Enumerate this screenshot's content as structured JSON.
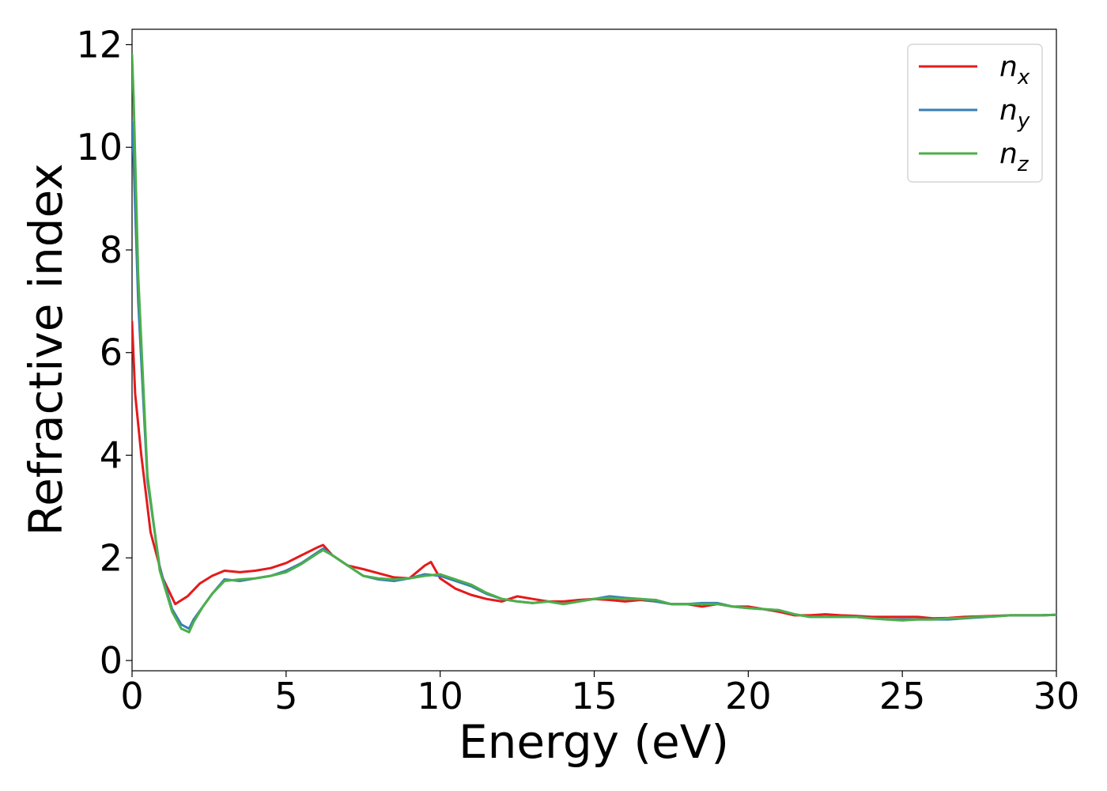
{
  "chart_data": {
    "type": "line",
    "xlabel": "Energy (eV)",
    "ylabel": "Refractive index",
    "xlim": [
      0,
      30
    ],
    "ylim": [
      -0.2,
      12.3
    ],
    "xticks": [
      0,
      5,
      10,
      15,
      20,
      25,
      30
    ],
    "yticks": [
      0,
      2,
      4,
      6,
      8,
      10,
      12
    ],
    "grid": false,
    "legend_position": "top-right",
    "series": [
      {
        "name": "n",
        "subscript": "x",
        "color": "#e41a1c",
        "x": [
          0,
          0.1,
          0.3,
          0.6,
          1.0,
          1.4,
          1.8,
          2.2,
          2.6,
          3.0,
          3.5,
          4.0,
          4.5,
          5.0,
          5.5,
          6.0,
          6.2,
          6.5,
          7.0,
          7.5,
          8.0,
          8.5,
          9.0,
          9.5,
          9.7,
          10.0,
          10.5,
          11.0,
          11.5,
          12.0,
          12.5,
          13.0,
          13.5,
          14.0,
          14.5,
          15.0,
          15.5,
          16.0,
          16.5,
          17.0,
          17.5,
          18.0,
          18.5,
          19.0,
          19.5,
          20.0,
          20.5,
          21.0,
          21.5,
          22.0,
          22.5,
          23.0,
          23.5,
          24.0,
          24.5,
          25.0,
          25.5,
          26.0,
          26.5,
          27.0,
          27.5,
          28.0,
          28.5,
          29.0,
          29.5,
          30.0
        ],
        "y": [
          6.6,
          5.2,
          4.0,
          2.5,
          1.6,
          1.1,
          1.25,
          1.5,
          1.65,
          1.75,
          1.72,
          1.75,
          1.8,
          1.9,
          2.05,
          2.2,
          2.25,
          2.05,
          1.85,
          1.78,
          1.7,
          1.62,
          1.6,
          1.85,
          1.92,
          1.6,
          1.4,
          1.28,
          1.2,
          1.15,
          1.25,
          1.2,
          1.15,
          1.15,
          1.18,
          1.2,
          1.18,
          1.15,
          1.18,
          1.15,
          1.1,
          1.1,
          1.05,
          1.1,
          1.05,
          1.05,
          1.0,
          0.95,
          0.88,
          0.88,
          0.9,
          0.88,
          0.87,
          0.85,
          0.85,
          0.85,
          0.85,
          0.82,
          0.83,
          0.85,
          0.86,
          0.87,
          0.88,
          0.88,
          0.88,
          0.89
        ]
      },
      {
        "name": "n",
        "subscript": "y",
        "color": "#377eb8",
        "x": [
          0,
          0.05,
          0.2,
          0.5,
          0.9,
          1.3,
          1.6,
          1.85,
          2.0,
          2.3,
          2.6,
          3.0,
          3.5,
          4.0,
          4.5,
          5.0,
          5.5,
          6.0,
          6.2,
          6.5,
          7.0,
          7.5,
          8.0,
          8.5,
          9.0,
          9.5,
          10.0,
          10.5,
          11.0,
          11.5,
          12.0,
          12.5,
          13.0,
          13.5,
          14.0,
          14.5,
          15.0,
          15.5,
          16.0,
          16.5,
          17.0,
          17.5,
          18.0,
          18.5,
          19.0,
          19.5,
          20.0,
          20.5,
          21.0,
          21.5,
          22.0,
          22.5,
          23.0,
          23.5,
          24.0,
          24.5,
          25.0,
          25.5,
          26.0,
          26.5,
          27.0,
          27.5,
          28.0,
          28.5,
          29.0,
          29.5,
          30.0
        ],
        "y": [
          10.5,
          9.8,
          7.0,
          3.5,
          1.8,
          1.0,
          0.7,
          0.62,
          0.8,
          1.05,
          1.3,
          1.58,
          1.55,
          1.6,
          1.65,
          1.75,
          1.9,
          2.1,
          2.18,
          2.05,
          1.85,
          1.65,
          1.58,
          1.55,
          1.6,
          1.68,
          1.65,
          1.55,
          1.45,
          1.3,
          1.2,
          1.15,
          1.12,
          1.15,
          1.1,
          1.15,
          1.2,
          1.25,
          1.22,
          1.2,
          1.15,
          1.1,
          1.1,
          1.12,
          1.12,
          1.05,
          1.02,
          1.0,
          0.98,
          0.9,
          0.85,
          0.85,
          0.85,
          0.85,
          0.82,
          0.8,
          0.8,
          0.8,
          0.8,
          0.8,
          0.82,
          0.84,
          0.86,
          0.88,
          0.88,
          0.88,
          0.89
        ]
      },
      {
        "name": "n",
        "subscript": "z",
        "color": "#4daf4a",
        "x": [
          0,
          0.05,
          0.2,
          0.5,
          0.9,
          1.3,
          1.6,
          1.85,
          2.0,
          2.3,
          2.6,
          3.0,
          3.5,
          4.0,
          4.5,
          5.0,
          5.5,
          6.0,
          6.2,
          6.5,
          7.0,
          7.5,
          8.0,
          8.5,
          9.0,
          9.5,
          10.0,
          10.5,
          11.0,
          11.5,
          12.0,
          12.5,
          13.0,
          13.5,
          14.0,
          14.5,
          15.0,
          15.5,
          16.0,
          16.5,
          17.0,
          17.5,
          18.0,
          18.5,
          19.0,
          19.5,
          20.0,
          20.5,
          21.0,
          21.5,
          22.0,
          22.5,
          23.0,
          23.5,
          24.0,
          24.5,
          25.0,
          25.5,
          26.0,
          26.5,
          27.0,
          27.5,
          28.0,
          28.5,
          29.0,
          29.5,
          30.0
        ],
        "y": [
          11.8,
          11.0,
          7.5,
          3.6,
          1.75,
          0.95,
          0.62,
          0.55,
          0.75,
          1.05,
          1.3,
          1.55,
          1.58,
          1.6,
          1.65,
          1.72,
          1.88,
          2.08,
          2.15,
          2.05,
          1.85,
          1.65,
          1.6,
          1.58,
          1.6,
          1.65,
          1.68,
          1.58,
          1.48,
          1.32,
          1.2,
          1.15,
          1.12,
          1.15,
          1.1,
          1.15,
          1.2,
          1.22,
          1.2,
          1.2,
          1.18,
          1.1,
          1.1,
          1.1,
          1.1,
          1.05,
          1.02,
          1.0,
          0.98,
          0.9,
          0.85,
          0.85,
          0.85,
          0.85,
          0.82,
          0.8,
          0.78,
          0.8,
          0.8,
          0.82,
          0.83,
          0.85,
          0.86,
          0.88,
          0.88,
          0.88,
          0.89
        ]
      }
    ]
  }
}
